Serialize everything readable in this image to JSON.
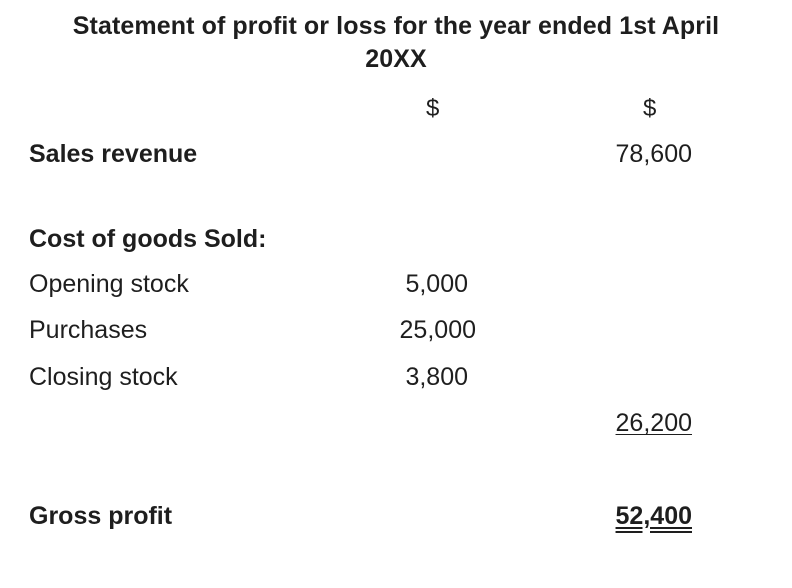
{
  "statement": {
    "title_line1": "Statement of profit or loss for the year ended 1st April",
    "title_line2": "20XX",
    "currency_col1": "$",
    "currency_col2": "$",
    "rows": {
      "sales_revenue": {
        "label": "Sales revenue",
        "col2": "78,600"
      },
      "cogs_heading": {
        "label": "Cost of goods Sold:"
      },
      "opening_stock": {
        "label": "Opening stock",
        "col1": "5,000"
      },
      "purchases": {
        "label": "Purchases",
        "col1": "25,000"
      },
      "closing_stock": {
        "label": "Closing stock",
        "col1": "3,800"
      },
      "cogs_total": {
        "col2": "26,200"
      },
      "gross_profit": {
        "label": "Gross profit",
        "col2": "52,400"
      }
    }
  }
}
